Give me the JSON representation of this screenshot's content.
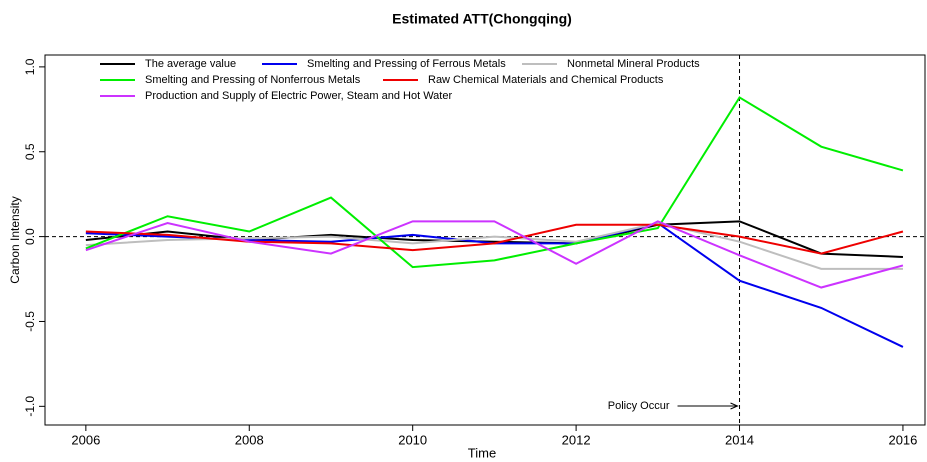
{
  "chart_data": {
    "type": "line",
    "title": "Estimated ATT(Chongqing)",
    "xlabel": "Time",
    "ylabel": "Carbon Intensity",
    "x": [
      2006,
      2007,
      2008,
      2009,
      2010,
      2011,
      2012,
      2013,
      2014,
      2015,
      2016
    ],
    "series": [
      {
        "name": "The average value",
        "color": "#000000",
        "values": [
          -0.02,
          0.03,
          -0.02,
          0.01,
          -0.02,
          -0.03,
          -0.04,
          0.07,
          0.09,
          -0.1,
          -0.12
        ]
      },
      {
        "name": "Smelting and Pressing of Ferrous Metals",
        "color": "#0000ee",
        "values": [
          0.02,
          0.0,
          -0.02,
          -0.03,
          0.01,
          -0.04,
          -0.04,
          0.08,
          -0.26,
          -0.42,
          -0.65
        ]
      },
      {
        "name": "Nonmetal Mineral Products",
        "color": "#bebebe",
        "values": [
          -0.05,
          -0.02,
          -0.01,
          0.0,
          -0.04,
          0.0,
          -0.03,
          0.08,
          -0.03,
          -0.19,
          -0.19
        ]
      },
      {
        "name": "Smelting and Pressing of Nonferrous Metals",
        "color": "#00ee00",
        "values": [
          -0.07,
          0.12,
          0.03,
          0.23,
          -0.18,
          -0.14,
          -0.04,
          0.05,
          0.82,
          0.53,
          0.39
        ]
      },
      {
        "name": "Raw Chemical Materials and Chemical Products",
        "color": "#ee0000",
        "values": [
          0.03,
          0.01,
          -0.03,
          -0.04,
          -0.08,
          -0.04,
          0.07,
          0.07,
          0.0,
          -0.1,
          0.03
        ]
      },
      {
        "name": "Production and Supply of Electric Power, Steam and Hot Water",
        "color": "#cc33ff",
        "values": [
          -0.08,
          0.08,
          -0.03,
          -0.1,
          0.09,
          0.09,
          -0.16,
          0.09,
          -0.11,
          -0.3,
          -0.17
        ]
      }
    ],
    "xlim": [
      2005.5,
      2016.27
    ],
    "ylim": [
      -1.11,
      1.07
    ],
    "xticks": [
      2006,
      2008,
      2010,
      2012,
      2014,
      2016
    ],
    "yticks": [
      {
        "value": -1,
        "label": "-1.0"
      },
      {
        "value": -0.5,
        "label": "-0.5"
      },
      {
        "value": 0,
        "label": "0.0"
      },
      {
        "value": 0.5,
        "label": "0.5"
      },
      {
        "value": 1,
        "label": "1.0"
      }
    ],
    "hline": 0,
    "vline": 2014,
    "annotation": "Policy Occur",
    "grid": false
  }
}
